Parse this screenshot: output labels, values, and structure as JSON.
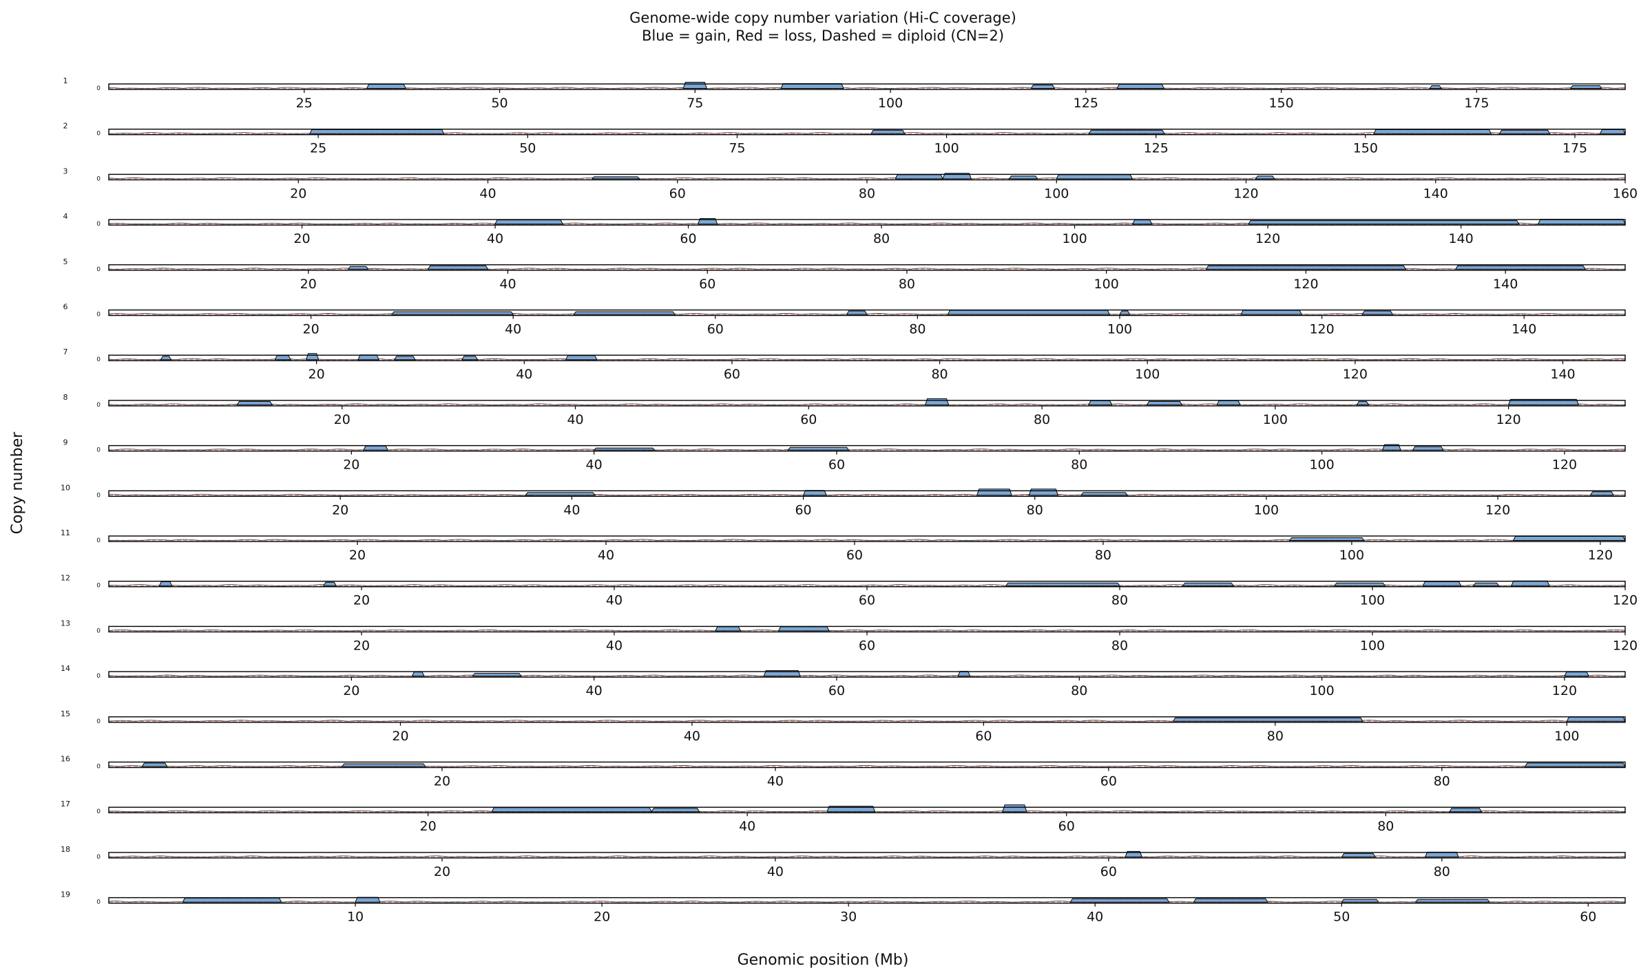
{
  "chart_data": {
    "type": "area",
    "title_line1": "Genome-wide copy number variation (Hi-C coverage)",
    "title_line2": "Blue = gain,  Red = loss,  Dashed = diploid (CN=2)",
    "xlabel": "Genomic position (Mb)",
    "ylabel": "Copy number",
    "baseline": 2,
    "colors": {
      "gain": "#7ba7d4",
      "loss": "#e06060",
      "diploid": "#f0a0a0",
      "outline": "#000000"
    },
    "panels": [
      {
        "name": "1",
        "xmax": 194,
        "ticks": [
          25,
          50,
          75,
          100,
          125,
          150,
          175
        ],
        "gains": [
          [
            33,
            38,
            0.6
          ],
          [
            73.5,
            76.5,
            0.9
          ],
          [
            86,
            94,
            0.7
          ],
          [
            118,
            121,
            0.5
          ],
          [
            129,
            135,
            0.6
          ],
          [
            169,
            170.5,
            0.4
          ],
          [
            187,
            191,
            0.4
          ]
        ]
      },
      {
        "name": "2",
        "xmax": 181,
        "ticks": [
          25,
          50,
          75,
          100,
          125,
          150,
          175
        ],
        "gains": [
          [
            24,
            40,
            0.6
          ],
          [
            91,
            95,
            0.5
          ],
          [
            117,
            126,
            0.5
          ],
          [
            151,
            165,
            0.6
          ],
          [
            166,
            172,
            0.5
          ],
          [
            178,
            181,
            0.6
          ]
        ]
      },
      {
        "name": "3",
        "xmax": 160,
        "ticks": [
          20,
          40,
          60,
          80,
          100,
          120,
          140,
          160
        ],
        "gains": [
          [
            51,
            56,
            0.3
          ],
          [
            83,
            88,
            0.6
          ],
          [
            88,
            91,
            0.8
          ],
          [
            95,
            98,
            0.4
          ],
          [
            100,
            108,
            0.6
          ],
          [
            121,
            123,
            0.4
          ]
        ]
      },
      {
        "name": "4",
        "xmax": 157,
        "ticks": [
          20,
          40,
          60,
          80,
          100,
          120,
          140
        ],
        "gains": [
          [
            40,
            47,
            0.6
          ],
          [
            61,
            63,
            0.8
          ],
          [
            106,
            108,
            0.6
          ],
          [
            118,
            146,
            0.5
          ],
          [
            148,
            157,
            0.7
          ]
        ]
      },
      {
        "name": "5",
        "xmax": 152,
        "ticks": [
          20,
          40,
          60,
          80,
          100,
          120,
          140
        ],
        "gains": [
          [
            24,
            26,
            0.4
          ],
          [
            32,
            38,
            0.5
          ],
          [
            110,
            130,
            0.5
          ],
          [
            135,
            148,
            0.5
          ]
        ]
      },
      {
        "name": "6",
        "xmax": 150,
        "ticks": [
          20,
          40,
          60,
          80,
          100,
          120,
          140
        ],
        "gains": [
          [
            28,
            40,
            0.4
          ],
          [
            46,
            56,
            0.4
          ],
          [
            73,
            75,
            0.5
          ],
          [
            83,
            99,
            0.6
          ],
          [
            100,
            101,
            0.5
          ],
          [
            112,
            118,
            0.6
          ],
          [
            124,
            127,
            0.5
          ]
        ]
      },
      {
        "name": "7",
        "xmax": 146,
        "ticks": [
          20,
          40,
          60,
          80,
          100,
          120,
          140
        ],
        "gains": [
          [
            5,
            6,
            0.5
          ],
          [
            16,
            17.5,
            0.6
          ],
          [
            19,
            20.2,
            0.9
          ],
          [
            24,
            26,
            0.7
          ],
          [
            27.5,
            29.5,
            0.5
          ],
          [
            34,
            35.5,
            0.5
          ],
          [
            44,
            47,
            0.6
          ]
        ]
      },
      {
        "name": "8",
        "xmax": 130,
        "ticks": [
          20,
          40,
          60,
          80,
          100,
          120
        ],
        "gains": [
          [
            11,
            14,
            0.5
          ],
          [
            70,
            72,
            0.9
          ],
          [
            84,
            86,
            0.6
          ],
          [
            89,
            92,
            0.5
          ],
          [
            95,
            97,
            0.6
          ],
          [
            107,
            108,
            0.5
          ],
          [
            120,
            126,
            0.8
          ]
        ]
      },
      {
        "name": "9",
        "xmax": 125,
        "ticks": [
          20,
          40,
          60,
          80,
          100,
          120
        ],
        "gains": [
          [
            21,
            23,
            0.6
          ],
          [
            40,
            45,
            0.3
          ],
          [
            56,
            61,
            0.4
          ],
          [
            105,
            106.5,
            0.8
          ],
          [
            107.5,
            110,
            0.5
          ]
        ]
      },
      {
        "name": "10",
        "xmax": 131,
        "ticks": [
          20,
          40,
          60,
          80,
          100,
          120
        ],
        "gains": [
          [
            36,
            42,
            0.4
          ],
          [
            60,
            62,
            0.7
          ],
          [
            75,
            78,
            0.9
          ],
          [
            79.5,
            82,
            0.9
          ],
          [
            84,
            88,
            0.4
          ],
          [
            128,
            130,
            0.5
          ]
        ]
      },
      {
        "name": "11",
        "xmax": 122,
        "ticks": [
          20,
          40,
          60,
          80,
          100,
          120
        ],
        "gains": [
          [
            95,
            101,
            0.4
          ],
          [
            113,
            122,
            0.6
          ]
        ]
      },
      {
        "name": "12",
        "xmax": 120,
        "ticks": [
          20,
          40,
          60,
          80,
          100,
          120
        ],
        "gains": [
          [
            4,
            5,
            0.6
          ],
          [
            17,
            18,
            0.5
          ],
          [
            71,
            80,
            0.4
          ],
          [
            85,
            89,
            0.4
          ],
          [
            97,
            101,
            0.4
          ],
          [
            104,
            107,
            0.6
          ],
          [
            108,
            110,
            0.4
          ],
          [
            111,
            114,
            0.7
          ]
        ]
      },
      {
        "name": "13",
        "xmax": 120,
        "ticks": [
          20,
          40,
          60,
          80,
          100,
          120
        ],
        "gains": [
          [
            48,
            50,
            0.6
          ],
          [
            53,
            57,
            0.6
          ]
        ]
      },
      {
        "name": "14",
        "xmax": 125,
        "ticks": [
          20,
          40,
          60,
          80,
          100,
          120
        ],
        "gains": [
          [
            25,
            26,
            0.6
          ],
          [
            30,
            34,
            0.4
          ],
          [
            54,
            57,
            0.8
          ],
          [
            70,
            71,
            0.7
          ],
          [
            120,
            122,
            0.6
          ]
        ]
      },
      {
        "name": "15",
        "xmax": 104,
        "ticks": [
          20,
          40,
          60,
          80,
          100
        ],
        "gains": [
          [
            73,
            86,
            0.5
          ],
          [
            100,
            104,
            0.6
          ]
        ]
      },
      {
        "name": "16",
        "xmax": 91,
        "ticks": [
          20,
          40,
          60,
          80
        ],
        "gains": [
          [
            2,
            3.5,
            0.5
          ],
          [
            14,
            19,
            0.4
          ],
          [
            85,
            91,
            0.5
          ]
        ]
      },
      {
        "name": "17",
        "xmax": 95,
        "ticks": [
          20,
          40,
          60,
          80
        ],
        "gains": [
          [
            24,
            34,
            0.6
          ],
          [
            34,
            37,
            0.5
          ],
          [
            45,
            48,
            0.8
          ],
          [
            56,
            57.5,
            1.0
          ],
          [
            84,
            86,
            0.5
          ]
        ]
      },
      {
        "name": "18",
        "xmax": 91,
        "ticks": [
          20,
          40,
          60,
          80
        ],
        "gains": [
          [
            61,
            62,
            0.8
          ],
          [
            74,
            76,
            0.5
          ],
          [
            79,
            81,
            0.7
          ]
        ]
      },
      {
        "name": "19",
        "xmax": 61.5,
        "ticks": [
          10,
          20,
          30,
          40,
          50,
          60
        ],
        "gains": [
          [
            3,
            7,
            0.6
          ],
          [
            10,
            11,
            0.7
          ],
          [
            39,
            43,
            0.5
          ],
          [
            44,
            47,
            0.5
          ],
          [
            50,
            51.5,
            0.4
          ],
          [
            53,
            56,
            0.4
          ]
        ]
      }
    ]
  }
}
